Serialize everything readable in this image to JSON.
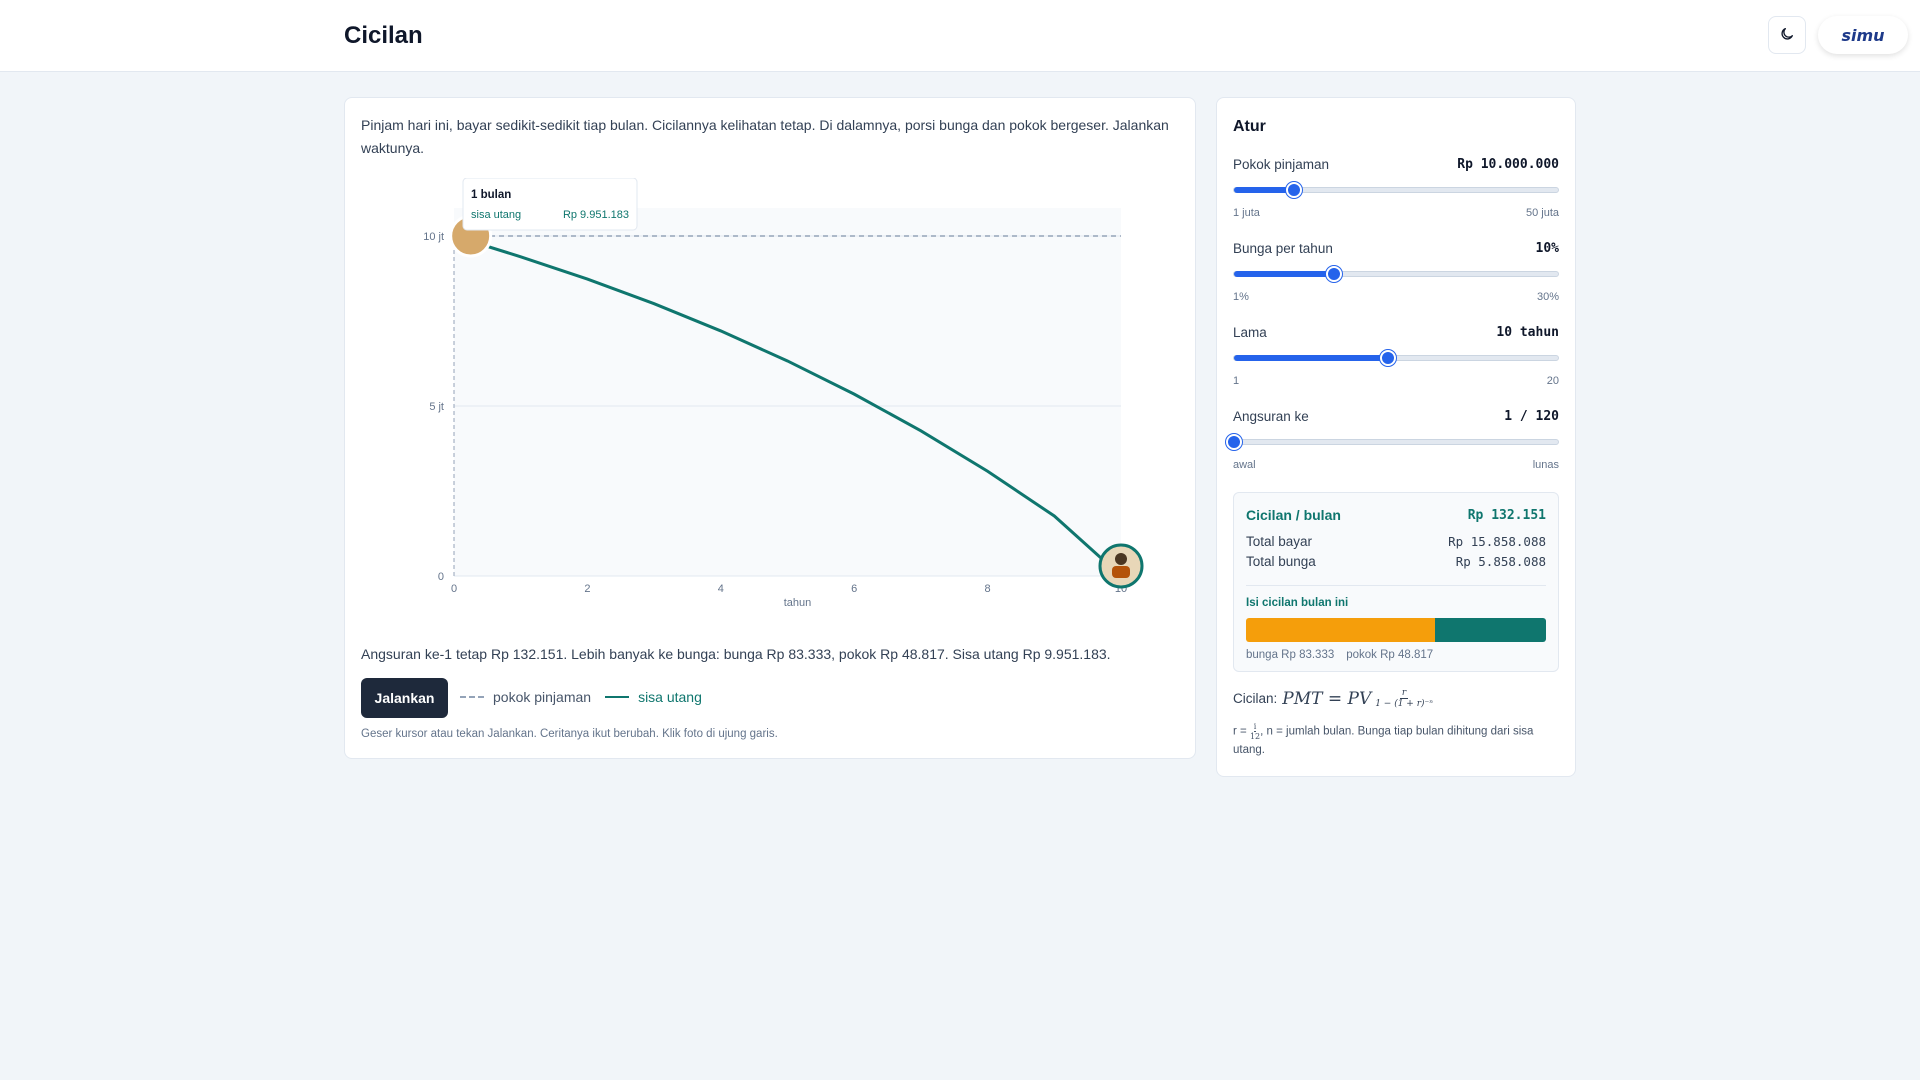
{
  "header": {
    "title": "Cicilan",
    "theme_icon": "moon-icon",
    "logo_text": "simu"
  },
  "main": {
    "intro": "Pinjam hari ini, bayar sedikit-sedikit tiap bulan. Cicilannya kelihatan tetap. Di dalamnya, porsi bunga dan pokok bergeser. Jalankan waktunya.",
    "summary": "Angsuran ke-1 tetap Rp 132.151. Lebih banyak ke bunga: bunga Rp 83.333, pokok Rp 48.817. Sisa utang Rp 9.951.183.",
    "run_label": "Jalankan",
    "legend_principal": "pokok pinjaman",
    "legend_balance": "sisa utang",
    "hint": "Geser kursor atau tekan Jalankan. Ceritanya ikut berubah. Klik foto di ujung garis."
  },
  "chart_data": {
    "type": "line",
    "xlabel": "tahun",
    "ylabel": "",
    "xlim": [
      0,
      10
    ],
    "ylim": [
      0,
      10000000
    ],
    "x_ticks": [
      "0",
      "2",
      "4",
      "6",
      "8",
      "10"
    ],
    "y_ticks": [
      "0",
      "5 jt",
      "10 jt"
    ],
    "x_tick_values": [
      0,
      2,
      4,
      6,
      8,
      10
    ],
    "y_tick_values": [
      0,
      5000000,
      10000000
    ],
    "principal_reference": 10000000,
    "series": [
      {
        "name": "sisa utang",
        "color": "#0f766e",
        "x": [
          0.083,
          1,
          2,
          3,
          4,
          5,
          6,
          7,
          8,
          9,
          10
        ],
        "values": [
          9951183,
          9389000,
          8733000,
          8009000,
          7208000,
          6325000,
          5349000,
          4271000,
          3080000,
          1765000,
          0
        ]
      },
      {
        "name": "pokok pinjaman",
        "color": "#94a3b8",
        "style": "dashed",
        "x": [
          0,
          10
        ],
        "values": [
          10000000,
          10000000
        ]
      }
    ],
    "tooltip": {
      "title": "1 bulan",
      "label": "sisa utang",
      "value": "Rp 9.951.183"
    },
    "grid": true
  },
  "controls": {
    "title": "Atur",
    "principal": {
      "label": "Pokok pinjaman",
      "value": "Rp 10.000.000",
      "min_label": "1 juta",
      "max_label": "50 juta",
      "fraction": 0.184
    },
    "rate": {
      "label": "Bunga per tahun",
      "value": "10%",
      "min_label": "1%",
      "max_label": "30%",
      "fraction": 0.31
    },
    "term": {
      "label": "Lama",
      "value": "10 tahun",
      "min_label": "1",
      "max_label": "20",
      "fraction": 0.474
    },
    "installment": {
      "label": "Angsuran ke",
      "value": "1 / 120",
      "min_label": "awal",
      "max_label": "lunas",
      "fraction": 0.0
    }
  },
  "result": {
    "payment_label": "Cicilan / bulan",
    "payment_value": "Rp 132.151",
    "total_paid_label": "Total bayar",
    "total_paid_value": "Rp 15.858.088",
    "total_interest_label": "Total bunga",
    "total_interest_value": "Rp 5.858.088",
    "split_title": "Isi cicilan bulan ini",
    "interest_share": 0.6306,
    "interest_label": "bunga Rp 83.333",
    "principal_label": "pokok Rp 48.817",
    "interest_color": "#f59e0b",
    "principal_color": "#0f766e"
  },
  "formula": {
    "prefix": "Cicilan:",
    "lhs": "PMT = PV",
    "num": "r",
    "den": "1 − (1 + r)⁻ⁿ",
    "note_prefix": "r =",
    "note_num": "i",
    "note_den": "12",
    "note_suffix": ", n = jumlah bulan. Bunga tiap bulan dihitung dari sisa utang."
  }
}
